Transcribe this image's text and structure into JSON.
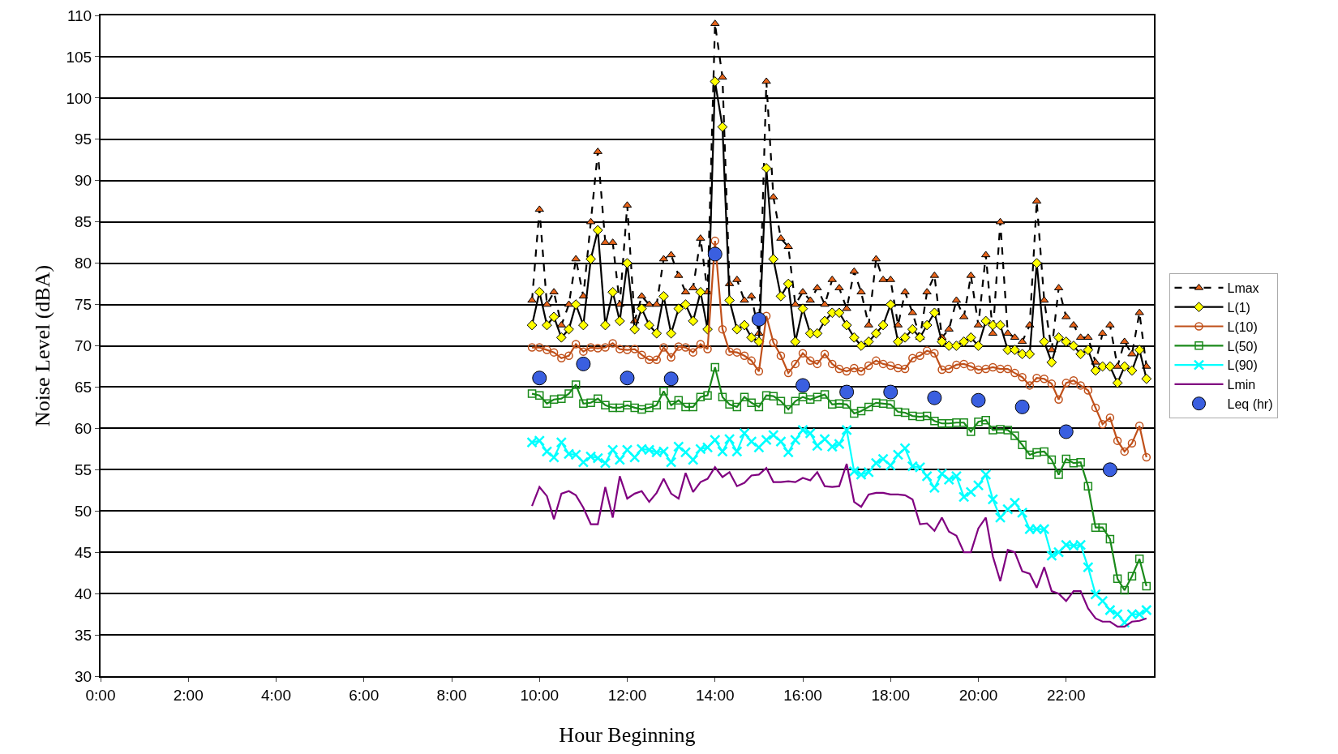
{
  "chart_data": {
    "type": "line",
    "xlabel": "Hour Beginning",
    "ylabel": "Noise Level (dBA)",
    "xlim": [
      0,
      24
    ],
    "ylim": [
      30,
      110
    ],
    "xticks": [
      {
        "value": 0,
        "label": "0:00"
      },
      {
        "value": 2,
        "label": "2:00"
      },
      {
        "value": 4,
        "label": "4:00"
      },
      {
        "value": 6,
        "label": "6:00"
      },
      {
        "value": 8,
        "label": "8:00"
      },
      {
        "value": 10,
        "label": "10:00"
      },
      {
        "value": 12,
        "label": "12:00"
      },
      {
        "value": 14,
        "label": "14:00"
      },
      {
        "value": 16,
        "label": "16:00"
      },
      {
        "value": 18,
        "label": "18:00"
      },
      {
        "value": 20,
        "label": "20:00"
      },
      {
        "value": 22,
        "label": "22:00"
      }
    ],
    "yticks": [
      30,
      35,
      40,
      45,
      50,
      55,
      60,
      65,
      70,
      75,
      80,
      85,
      90,
      95,
      100,
      105,
      110
    ],
    "grid": "y",
    "legend": "right",
    "x": [
      9.83,
      10,
      10.17,
      10.33,
      10.5,
      10.67,
      10.83,
      11,
      11.17,
      11.33,
      11.5,
      11.67,
      11.83,
      12,
      12.17,
      12.33,
      12.5,
      12.67,
      12.83,
      13,
      13.17,
      13.33,
      13.5,
      13.67,
      13.83,
      14,
      14.17,
      14.33,
      14.5,
      14.67,
      14.83,
      15,
      15.17,
      15.33,
      15.5,
      15.67,
      15.83,
      16,
      16.17,
      16.33,
      16.5,
      16.67,
      16.83,
      17,
      17.17,
      17.33,
      17.5,
      17.67,
      17.83,
      18,
      18.17,
      18.33,
      18.5,
      18.67,
      18.83,
      19,
      19.17,
      19.33,
      19.5,
      19.67,
      19.83,
      20,
      20.17,
      20.33,
      20.5,
      20.67,
      20.83,
      21,
      21.17,
      21.33,
      21.5,
      21.67,
      21.83,
      22,
      22.17,
      22.33,
      22.5,
      22.67,
      22.83,
      23,
      23.17,
      23.33,
      23.5,
      23.67,
      23.83
    ],
    "series": [
      {
        "name": "Lmax",
        "color": "#e8641a",
        "line_style": "dashed",
        "marker": "triangle",
        "values": [
          75.5,
          86.5,
          75,
          76.5,
          72.5,
          75,
          80.5,
          76,
          85,
          93.5,
          82.5,
          82.5,
          75,
          87,
          73,
          76,
          75,
          75,
          80.5,
          81,
          78.5,
          76.5,
          77,
          83,
          76.5,
          109,
          102.5,
          77.5,
          78,
          75.5,
          76,
          71.5,
          102,
          88,
          83,
          82,
          75,
          76.5,
          75.5,
          77,
          75,
          78,
          77,
          74.5,
          79,
          76.5,
          72.5,
          80.5,
          78,
          78,
          72.5,
          76.5,
          74,
          71,
          76.5,
          78.5,
          71,
          72,
          75.5,
          73.5,
          78.5,
          72.5,
          81,
          71.5,
          85,
          71.5,
          71,
          70.5,
          72.5,
          87.5,
          75.5,
          69.5,
          77,
          73.5,
          72.5,
          71,
          71,
          68,
          71.5,
          72.5,
          67.5,
          70.5,
          69,
          74,
          67.5
        ]
      },
      {
        "name": "L(1)",
        "color": "#ffff00",
        "line_style": "solid",
        "marker": "diamond",
        "values": [
          72.5,
          76.5,
          72.5,
          73.5,
          71,
          72,
          75,
          72.5,
          80.5,
          84,
          72.5,
          76.5,
          73,
          80,
          72,
          74.5,
          72.5,
          71.5,
          76,
          71.5,
          74.5,
          75,
          73,
          76.5,
          72,
          102,
          96.5,
          75.5,
          72,
          72.5,
          71,
          70.5,
          91.5,
          80.5,
          76,
          77.5,
          70.5,
          74.5,
          71.5,
          71.5,
          73,
          74,
          74,
          72.5,
          71,
          70,
          70.5,
          71.5,
          72.5,
          75,
          70.5,
          71,
          72,
          71,
          72.5,
          74,
          70.5,
          70,
          70,
          70.5,
          71,
          70,
          73,
          72.5,
          72.5,
          69.5,
          69.5,
          69,
          69,
          80,
          70.5,
          68,
          71,
          70.5,
          70,
          69,
          69.5,
          67,
          67.5,
          67.5,
          65.5,
          67.5,
          67,
          69.5,
          66
        ]
      },
      {
        "name": "L(10)",
        "color": "#c0501a",
        "line_style": "solid",
        "marker": "circle",
        "values": [
          69.8,
          69.8,
          69.5,
          69.2,
          68.5,
          68.8,
          70.2,
          69.3,
          69.8,
          69.7,
          69.8,
          70.3,
          69.6,
          69.5,
          69.6,
          68.9,
          68.3,
          68.3,
          69.8,
          68.6,
          69.9,
          69.8,
          69.2,
          70.2,
          69.6,
          82.7,
          72,
          69.3,
          69.2,
          68.8,
          68.2,
          66.9,
          73.6,
          70.4,
          68.8,
          66.7,
          67.8,
          69.1,
          68.2,
          67.8,
          69,
          67.8,
          67.2,
          66.9,
          67.3,
          66.9,
          67.6,
          68.2,
          67.8,
          67.6,
          67.3,
          67.2,
          68.5,
          68.8,
          69.4,
          69.1,
          67.1,
          67.2,
          67.7,
          67.8,
          67.5,
          67.1,
          67.2,
          67.4,
          67.2,
          67.2,
          66.7,
          66.2,
          65.2,
          66.1,
          66,
          65.4,
          63.5,
          65.5,
          65.8,
          65.2,
          64.6,
          62.5,
          60.5,
          61.3,
          58.5,
          57.2,
          58.2,
          60.3,
          56.5
        ]
      },
      {
        "name": "L(50)",
        "color": "#1a8a1a",
        "line_style": "solid",
        "marker": "square",
        "values": [
          64.2,
          64,
          63,
          63.5,
          63.6,
          64.2,
          65.3,
          63,
          63.1,
          63.6,
          62.8,
          62.5,
          62.5,
          62.8,
          62.5,
          62.3,
          62.5,
          62.8,
          64.5,
          62.8,
          63.4,
          62.6,
          62.6,
          63.8,
          64,
          67.4,
          63.8,
          62.9,
          62.6,
          63.8,
          63.1,
          62.6,
          64,
          63.9,
          63.3,
          62.3,
          63.3,
          63.8,
          63.5,
          63.8,
          64.1,
          62.9,
          63,
          62.9,
          61.8,
          62.1,
          62.6,
          63.1,
          63,
          62.9,
          62,
          61.9,
          61.5,
          61.4,
          61.5,
          60.9,
          60.6,
          60.6,
          60.7,
          60.7,
          59.6,
          60.8,
          61,
          59.8,
          59.9,
          59.8,
          59.1,
          58,
          56.8,
          57.1,
          57.2,
          56.2,
          54.4,
          56.3,
          55.8,
          55.9,
          53,
          48,
          48,
          46.6,
          41.8,
          40.4,
          42.1,
          44.2,
          40.9
        ]
      },
      {
        "name": "L(90)",
        "color": "#00ffff",
        "line_style": "solid",
        "marker": "cross",
        "values": [
          58.3,
          58.5,
          57.2,
          56.5,
          58.3,
          56.9,
          56.8,
          55.9,
          56.6,
          56.4,
          55.8,
          57.4,
          56.2,
          57.4,
          56.5,
          57.5,
          57.4,
          57.1,
          57.2,
          55.9,
          57.8,
          57.1,
          56.2,
          57.5,
          57.7,
          58.6,
          57.2,
          58.7,
          57.2,
          59.4,
          58.4,
          57.7,
          58.6,
          59.2,
          58.4,
          57.1,
          58.6,
          59.8,
          59.4,
          57.9,
          58.7,
          57.8,
          58.1,
          59.8,
          54.8,
          54.4,
          54.7,
          55.8,
          56.3,
          55.5,
          56.8,
          57.6,
          55.4,
          55.3,
          54.2,
          52.8,
          54.5,
          53.8,
          54.2,
          51.7,
          52.3,
          53.1,
          54.4,
          51.4,
          49.2,
          50.2,
          51,
          49.8,
          47.8,
          47.8,
          47.8,
          44.6,
          45,
          45.9,
          45.8,
          45.9,
          43.2,
          39.9,
          39.1,
          38,
          37.5,
          36.5,
          37.5,
          37.5,
          38
        ]
      },
      {
        "name": "Lmin",
        "color": "#800080",
        "line_style": "solid",
        "marker": "none",
        "values": [
          50.6,
          52.9,
          51.8,
          49,
          52.1,
          52.4,
          51.9,
          50.4,
          48.4,
          48.4,
          52.9,
          49.2,
          54.2,
          51.5,
          52.1,
          52.4,
          51.1,
          52.2,
          53.9,
          52.1,
          51.5,
          54.6,
          52.3,
          53.5,
          53.9,
          55.3,
          54.1,
          54.7,
          53,
          53.4,
          54.3,
          54.4,
          55.2,
          53.5,
          53.5,
          53.6,
          53.5,
          54,
          53.7,
          54.7,
          53,
          52.9,
          53,
          55.7,
          51.1,
          50.5,
          52,
          52.2,
          52.2,
          52,
          52,
          51.9,
          51.4,
          48.4,
          48.5,
          47.6,
          49.2,
          47.5,
          47,
          45,
          45,
          47.9,
          49.2,
          44.5,
          41.5,
          45.3,
          45,
          42.7,
          42.4,
          40.7,
          43.2,
          40.3,
          40,
          39.1,
          40.3,
          40.3,
          38.2,
          37,
          36.6,
          36.6,
          36,
          36,
          36.6,
          36.7,
          37
        ]
      },
      {
        "name": "Leq (hr)",
        "type": "scatter",
        "color": "#3a5fe0",
        "marker": "circle",
        "x": [
          10,
          11,
          12,
          13,
          14,
          15,
          16,
          17,
          18,
          19,
          20,
          21,
          22,
          23
        ],
        "values": [
          66.1,
          67.8,
          66.1,
          66,
          81.1,
          73.2,
          65.2,
          64.4,
          64.4,
          63.7,
          63.4,
          62.6,
          59.6,
          55
        ]
      }
    ]
  }
}
